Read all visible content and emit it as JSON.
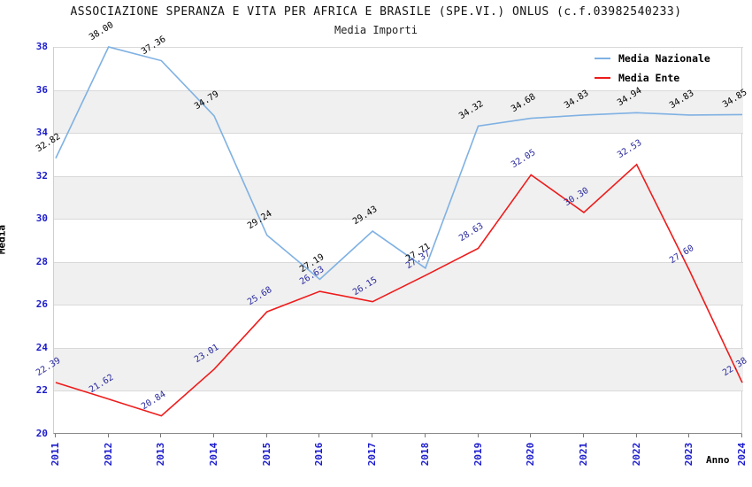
{
  "title": "ASSOCIAZIONE SPERANZA E VITA PER AFRICA E BRASILE (SPE.VI.) ONLUS (c.f.03982540233)",
  "subtitle": "Media Importi",
  "axes": {
    "x_label": "Anno",
    "y_label": "Media",
    "y_ticks": [
      38,
      36,
      34,
      32,
      30,
      28,
      26,
      24,
      22,
      20
    ],
    "tick_color": "#1a1acd"
  },
  "legend": {
    "position": "top-right",
    "items": [
      {
        "label": "Media Nazionale",
        "color": "#7fb1e3"
      },
      {
        "label": "Media Ente",
        "color": "#ee1b1b"
      }
    ]
  },
  "chart_data": {
    "type": "line",
    "title": "ASSOCIAZIONE SPERANZA E VITA PER AFRICA E BRASILE (SPE.VI.) ONLUS (c.f.03982540233)",
    "subtitle": "Media Importi",
    "xlabel": "Anno",
    "ylabel": "Media",
    "x": [
      "2011",
      "2012",
      "2013",
      "2014",
      "2015",
      "2016",
      "2017",
      "2018",
      "2019",
      "2020",
      "2021",
      "2022",
      "2023",
      "2024"
    ],
    "series": [
      {
        "name": "Media Nazionale",
        "color": "#7fb1e3",
        "label_color": "#000000",
        "values": [
          32.82,
          38.0,
          37.36,
          34.79,
          29.24,
          27.19,
          29.43,
          27.71,
          34.32,
          34.68,
          34.83,
          34.94,
          34.83,
          34.85
        ]
      },
      {
        "name": "Media Ente",
        "color": "#ee1b1b",
        "label_color": "#2b2b9e",
        "values": [
          22.39,
          21.62,
          20.84,
          23.01,
          25.68,
          26.63,
          26.15,
          27.37,
          28.63,
          32.05,
          30.3,
          32.53,
          27.6,
          22.38
        ]
      }
    ],
    "ylim": [
      20,
      38
    ],
    "y_tick_step": 2,
    "grid": "horizontal",
    "gray_bands": [
      [
        36,
        34
      ],
      [
        32,
        30
      ],
      [
        28,
        26
      ],
      [
        24,
        22
      ]
    ],
    "legend_position": "top-right",
    "point_labels": "two-decimals, rotated"
  }
}
